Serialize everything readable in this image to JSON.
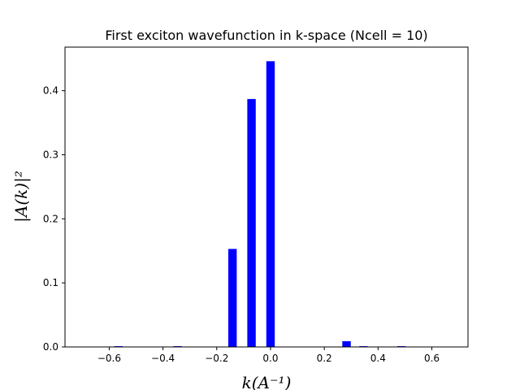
{
  "chart_data": {
    "type": "bar",
    "title": "First exciton wavefunction in k-space (Ncell = 10)",
    "xlabel": "k(A⁻¹)",
    "ylabel": "|A(k)|²",
    "xlim": [
      -0.7644,
      0.7344
    ],
    "ylim": [
      0,
      0.468
    ],
    "bar_width": 0.0314,
    "bar_color": "#0000ff",
    "x": [
      -0.5655,
      -0.3456,
      -0.1414,
      -0.0707,
      0.0,
      0.2827,
      0.3456,
      0.4869
    ],
    "values": [
      0.0012,
      0.0012,
      0.153,
      0.387,
      0.446,
      0.009,
      0.0012,
      0.0012
    ],
    "xticks": [
      -0.6,
      -0.4,
      -0.2,
      0.0,
      0.2,
      0.4,
      0.6
    ],
    "xtick_labels": [
      "−0.6",
      "−0.4",
      "−0.2",
      "0.0",
      "0.2",
      "0.4",
      "0.6"
    ],
    "yticks": [
      0.0,
      0.1,
      0.2,
      0.3,
      0.4
    ],
    "ytick_labels": [
      "0.0",
      "0.1",
      "0.2",
      "0.3",
      "0.4"
    ],
    "grid": false,
    "legend": "none"
  }
}
